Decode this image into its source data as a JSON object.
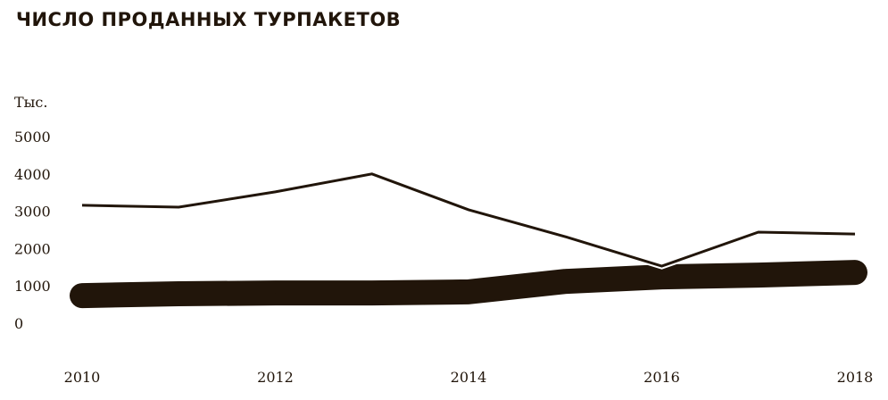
{
  "chart_data": {
    "type": "line",
    "title": "ЧИСЛО ПРОДАННЫХ ТУРПАКЕТОВ",
    "ylabel": "Тыс.",
    "xlabel": "",
    "x": [
      2010,
      2011,
      2012,
      2013,
      2014,
      2015,
      2016,
      2017,
      2018
    ],
    "x_tick_labels": [
      "2010",
      "2012",
      "2014",
      "2016",
      "2018"
    ],
    "y_tick_labels": [
      "0",
      "1000",
      "2000",
      "3000",
      "4000",
      "5000"
    ],
    "ylim": [
      0,
      5000
    ],
    "grid": false,
    "series": [
      {
        "style": "thin",
        "color": "#21150a",
        "values": [
          3160,
          3110,
          3520,
          4000,
          3040,
          2320,
          1530,
          2440,
          2390
        ]
      },
      {
        "style": "thick",
        "color": "#21150a",
        "values": [
          740,
          790,
          810,
          810,
          840,
          1120,
          1240,
          1290,
          1360
        ]
      }
    ]
  }
}
